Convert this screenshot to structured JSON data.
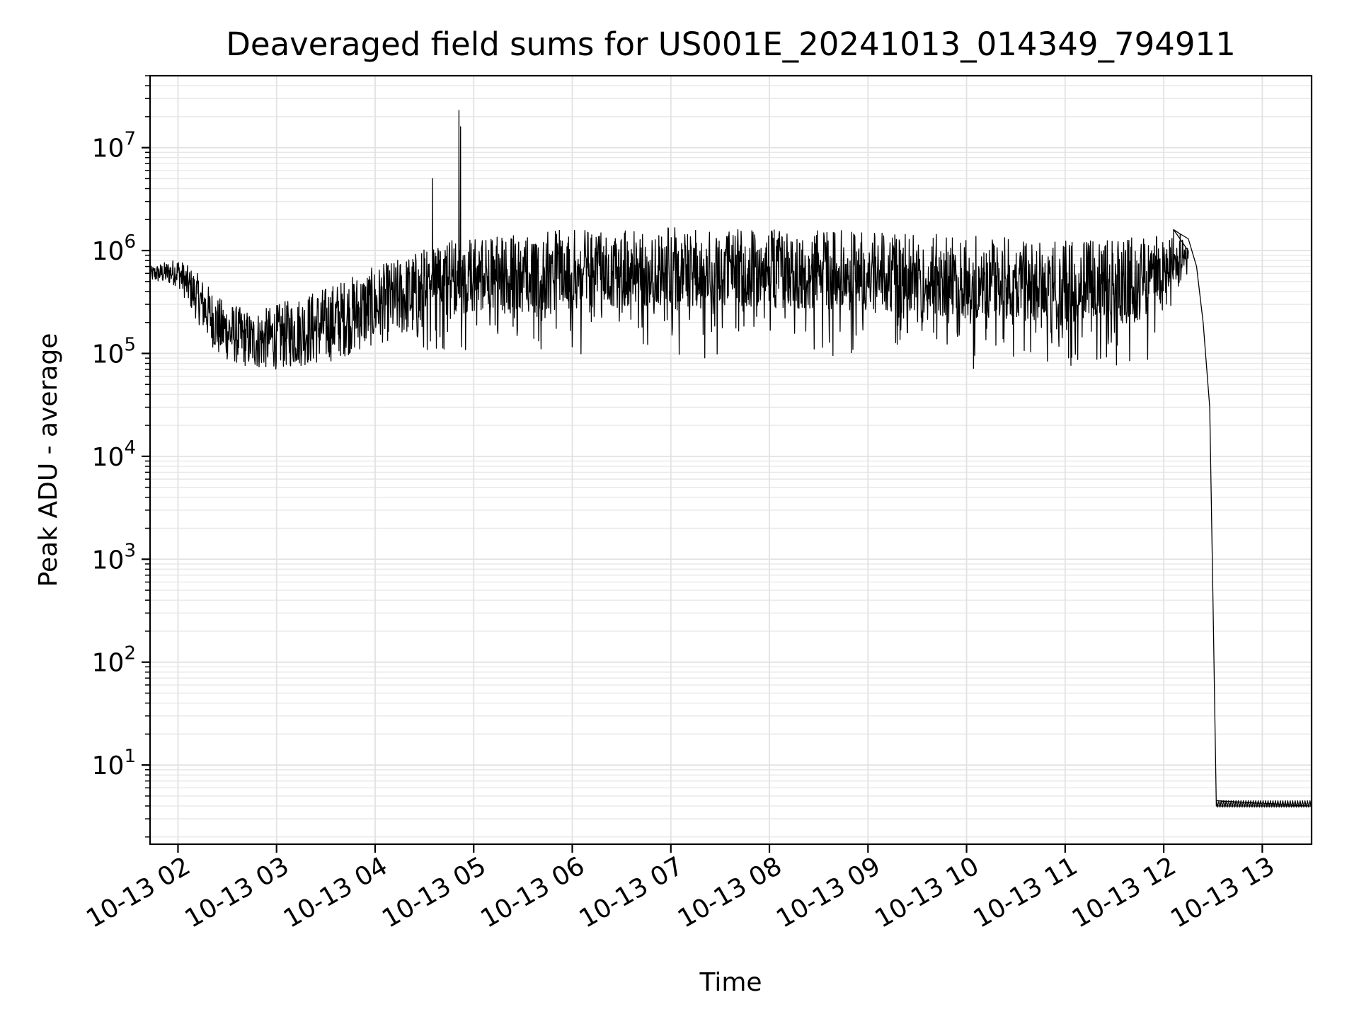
{
  "chart_data": {
    "type": "line",
    "title": "Deaveraged field sums for US001E_20241013_014349_794911",
    "xlabel": "Time",
    "ylabel": "Peak ADU - average",
    "yscale": "log",
    "xlim": [
      "2024-10-13 01:43",
      "2024-10-13 13:30"
    ],
    "ylim": [
      1.7,
      50000000
    ],
    "grid": true,
    "x_ticks": [
      {
        "t": "2024-10-13 02:00",
        "label": "10-13 02"
      },
      {
        "t": "2024-10-13 03:00",
        "label": "10-13 03"
      },
      {
        "t": "2024-10-13 04:00",
        "label": "10-13 04"
      },
      {
        "t": "2024-10-13 05:00",
        "label": "10-13 05"
      },
      {
        "t": "2024-10-13 06:00",
        "label": "10-13 06"
      },
      {
        "t": "2024-10-13 07:00",
        "label": "10-13 07"
      },
      {
        "t": "2024-10-13 08:00",
        "label": "10-13 08"
      },
      {
        "t": "2024-10-13 09:00",
        "label": "10-13 09"
      },
      {
        "t": "2024-10-13 10:00",
        "label": "10-13 10"
      },
      {
        "t": "2024-10-13 11:00",
        "label": "10-13 11"
      },
      {
        "t": "2024-10-13 12:00",
        "label": "10-13 12"
      },
      {
        "t": "2024-10-13 13:00",
        "label": "10-13 13"
      }
    ],
    "y_ticks": [
      {
        "value": 10,
        "base": "10",
        "exp": "1"
      },
      {
        "value": 100,
        "base": "10",
        "exp": "2"
      },
      {
        "value": 1000,
        "base": "10",
        "exp": "3"
      },
      {
        "value": 10000,
        "base": "10",
        "exp": "4"
      },
      {
        "value": 100000,
        "base": "10",
        "exp": "5"
      },
      {
        "value": 1000000,
        "base": "10",
        "exp": "6"
      },
      {
        "value": 10000000,
        "base": "10",
        "exp": "7"
      }
    ],
    "series": [
      {
        "color": "#000000",
        "envelope": [
          {
            "t": "2024-10-13 01:43",
            "low": 500000,
            "high": 700000
          },
          {
            "t": "2024-10-13 02:00",
            "low": 450000,
            "high": 850000
          },
          {
            "t": "2024-10-13 02:12",
            "low": 200000,
            "high": 600000
          },
          {
            "t": "2024-10-13 02:25",
            "low": 90000,
            "high": 350000
          },
          {
            "t": "2024-10-13 02:45",
            "low": 70000,
            "high": 250000
          },
          {
            "t": "2024-10-13 03:00",
            "low": 70000,
            "high": 300000
          },
          {
            "t": "2024-10-13 03:30",
            "low": 80000,
            "high": 450000
          },
          {
            "t": "2024-10-13 04:00",
            "low": 120000,
            "high": 700000
          },
          {
            "t": "2024-10-13 04:20",
            "low": 150000,
            "high": 900000
          },
          {
            "t": "2024-10-13 04:35",
            "low": 90000,
            "high": 1200000
          },
          {
            "t": "2024-10-13 05:00",
            "low": 80000,
            "high": 1400000
          },
          {
            "t": "2024-10-13 06:00",
            "low": 85000,
            "high": 1600000
          },
          {
            "t": "2024-10-13 07:00",
            "low": 90000,
            "high": 1700000
          },
          {
            "t": "2024-10-13 08:00",
            "low": 85000,
            "high": 1600000
          },
          {
            "t": "2024-10-13 09:00",
            "low": 75000,
            "high": 1550000
          },
          {
            "t": "2024-10-13 10:00",
            "low": 65000,
            "high": 1400000
          },
          {
            "t": "2024-10-13 11:00",
            "low": 60000,
            "high": 1250000
          },
          {
            "t": "2024-10-13 11:45",
            "low": 60000,
            "high": 1400000
          },
          {
            "t": "2024-10-13 12:00",
            "low": 150000,
            "high": 1500000
          },
          {
            "t": "2024-10-13 12:15",
            "low": 500000,
            "high": 1500000
          }
        ],
        "points": [
          {
            "t": "2024-10-13 04:35",
            "y": 5000000
          },
          {
            "t": "2024-10-13 04:51",
            "y": 23000000
          },
          {
            "t": "2024-10-13 04:52",
            "y": 16000000
          },
          {
            "t": "2024-10-13 12:06",
            "y": 1600000
          },
          {
            "t": "2024-10-13 12:10",
            "y": 1450000
          },
          {
            "t": "2024-10-13 12:15",
            "y": 1300000
          },
          {
            "t": "2024-10-13 12:20",
            "y": 700000
          },
          {
            "t": "2024-10-13 12:24",
            "y": 200000
          },
          {
            "t": "2024-10-13 12:28",
            "y": 30000
          },
          {
            "t": "2024-10-13 12:30",
            "y": 400
          },
          {
            "t": "2024-10-13 12:32",
            "y": 4
          },
          {
            "t": "2024-10-13 13:30",
            "y": 4
          }
        ]
      }
    ]
  }
}
